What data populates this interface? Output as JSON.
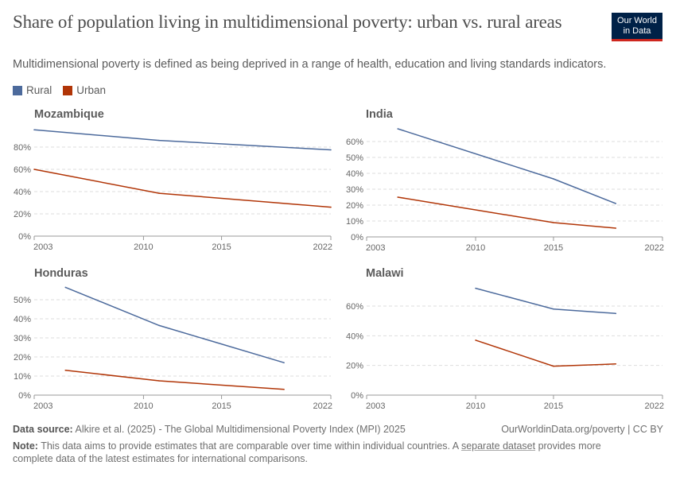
{
  "title": "Share of population living in multidimensional poverty: urban vs. rural areas",
  "subtitle": "Multidimensional poverty is defined as being deprived in a range of health, education and living standards indicators.",
  "logo": {
    "line1": "Our World",
    "line2": "in Data"
  },
  "legend": [
    {
      "name": "Rural",
      "color": "#4c6a9c"
    },
    {
      "name": "Urban",
      "color": "#b13507"
    }
  ],
  "footer": {
    "source_label": "Data source:",
    "source_text": "Alkire et al. (2025) - The Global Multidimensional Poverty Index (MPI) 2025",
    "url": "OurWorldinData.org/poverty | CC BY",
    "note_label": "Note:",
    "note_before": "This data aims to provide estimates that are comparable over time within individual countries. A",
    "note_link": "separate dataset",
    "note_after": "provides more complete data of the latest estimates for international comparisons."
  },
  "chart_data": [
    {
      "type": "line",
      "title": "Mozambique",
      "xlim": [
        2003,
        2022
      ],
      "xticks": [
        "2003",
        "2010",
        "2015",
        "2022"
      ],
      "ylim": [
        0,
        100
      ],
      "yticks": [
        0,
        20,
        40,
        60,
        80
      ],
      "ytick_labels": [
        "0%",
        "20%",
        "40%",
        "60%",
        "80%"
      ],
      "grid": true,
      "series": [
        {
          "name": "Rural",
          "x": [
            2003,
            2011,
            2022
          ],
          "y": [
            95.5,
            86,
            77.5
          ]
        },
        {
          "name": "Urban",
          "x": [
            2003,
            2011,
            2022
          ],
          "y": [
            60,
            38.5,
            26
          ]
        }
      ]
    },
    {
      "type": "line",
      "title": "India",
      "xlim": [
        2003,
        2022
      ],
      "xticks": [
        "2003",
        "2010",
        "2015",
        "2022"
      ],
      "ylim": [
        0,
        70
      ],
      "yticks": [
        0,
        10,
        20,
        30,
        40,
        50,
        60
      ],
      "ytick_labels": [
        "0%",
        "10%",
        "20%",
        "30%",
        "40%",
        "50%",
        "60%"
      ],
      "grid": true,
      "series": [
        {
          "name": "Rural",
          "x": [
            2005,
            2015,
            2019
          ],
          "y": [
            68,
            36.5,
            21
          ]
        },
        {
          "name": "Urban",
          "x": [
            2005,
            2015,
            2019
          ],
          "y": [
            25,
            9,
            5.5
          ]
        }
      ]
    },
    {
      "type": "line",
      "title": "Honduras",
      "xlim": [
        2003,
        2022
      ],
      "xticks": [
        "2003",
        "2010",
        "2015",
        "2022"
      ],
      "ylim": [
        0,
        60
      ],
      "yticks": [
        0,
        10,
        20,
        30,
        40,
        50
      ],
      "ytick_labels": [
        "0%",
        "10%",
        "20%",
        "30%",
        "40%",
        "50%"
      ],
      "grid": true,
      "series": [
        {
          "name": "Rural",
          "x": [
            2005,
            2011,
            2019
          ],
          "y": [
            56.5,
            36.5,
            17
          ]
        },
        {
          "name": "Urban",
          "x": [
            2005,
            2011,
            2019
          ],
          "y": [
            13,
            7.5,
            3
          ]
        }
      ]
    },
    {
      "type": "line",
      "title": "Malawi",
      "xlim": [
        2003,
        2022
      ],
      "xticks": [
        "2003",
        "2010",
        "2015",
        "2022"
      ],
      "ylim": [
        0,
        80
      ],
      "yticks": [
        0,
        20,
        40,
        60
      ],
      "ytick_labels": [
        "0%",
        "20%",
        "40%",
        "60%"
      ],
      "grid": true,
      "series": [
        {
          "name": "Rural",
          "x": [
            2010,
            2015,
            2019
          ],
          "y": [
            72,
            58,
            55
          ]
        },
        {
          "name": "Urban",
          "x": [
            2010,
            2015,
            2019
          ],
          "y": [
            37,
            19.5,
            21
          ]
        }
      ]
    }
  ]
}
